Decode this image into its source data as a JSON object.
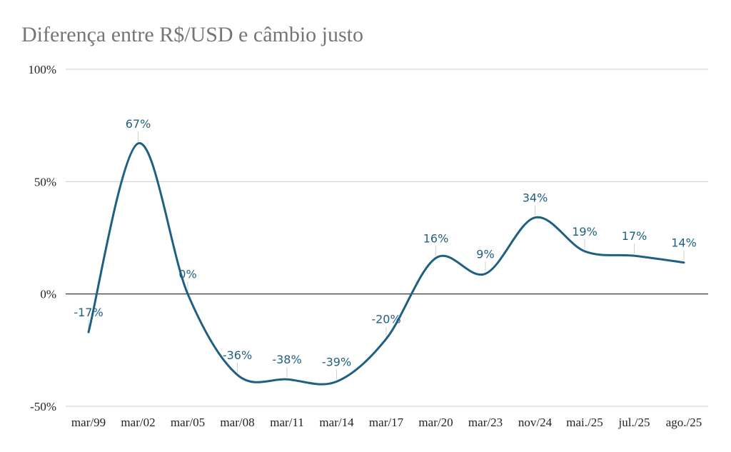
{
  "chart_data": {
    "type": "line",
    "title": "Diferença entre R$/USD e câmbio justo",
    "xlabel": "",
    "ylabel": "",
    "categories": [
      "mar/99",
      "mar/02",
      "mar/05",
      "mar/08",
      "mar/11",
      "mar/14",
      "mar/17",
      "mar/20",
      "mar/23",
      "nov/24",
      "mai./25",
      "jul./25",
      "ago./25"
    ],
    "y_ticks": [
      -50,
      0,
      50,
      100
    ],
    "y_tick_labels": [
      "-50%",
      "0%",
      "50%",
      "100%"
    ],
    "ylim": [
      -50,
      100
    ],
    "grid": true,
    "legend": "none",
    "series": [
      {
        "name": "Diferença entre R$/USD e câmbio justo",
        "color": "#1f5f82",
        "values": [
          -17,
          67,
          0,
          -36,
          -38,
          -39,
          -20,
          16,
          9,
          34,
          19,
          17,
          14
        ],
        "labels": [
          "-17%",
          "67%",
          "0%",
          "-36%",
          "-38%",
          "-39%",
          "-20%",
          "16%",
          "9%",
          "34%",
          "19%",
          "17%",
          "14%"
        ]
      }
    ]
  }
}
